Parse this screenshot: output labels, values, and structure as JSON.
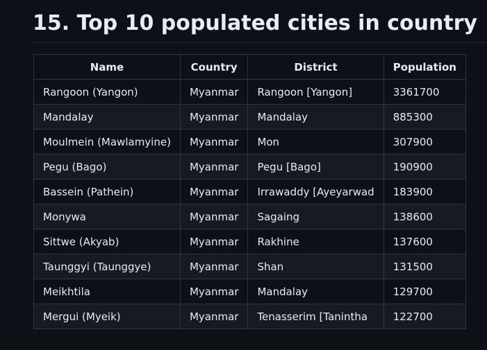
{
  "heading": "15. Top 10 populated cities in country",
  "table": {
    "columns": [
      "Name",
      "Country",
      "District",
      "Population"
    ],
    "rows": [
      {
        "name": "Rangoon (Yangon)",
        "country": "Myanmar",
        "district": "Rangoon [Yangon]",
        "population": "3361700"
      },
      {
        "name": "Mandalay",
        "country": "Myanmar",
        "district": "Mandalay",
        "population": "885300"
      },
      {
        "name": "Moulmein (Mawlamyine)",
        "country": "Myanmar",
        "district": "Mon",
        "population": "307900"
      },
      {
        "name": "Pegu (Bago)",
        "country": "Myanmar",
        "district": "Pegu [Bago]",
        "population": "190900"
      },
      {
        "name": "Bassein (Pathein)",
        "country": "Myanmar",
        "district": "Irrawaddy [Ayeyarwad",
        "population": "183900"
      },
      {
        "name": "Monywa",
        "country": "Myanmar",
        "district": "Sagaing",
        "population": "138600"
      },
      {
        "name": "Sittwe (Akyab)",
        "country": "Myanmar",
        "district": "Rakhine",
        "population": "137600"
      },
      {
        "name": "Taunggyi (Taunggye)",
        "country": "Myanmar",
        "district": "Shan",
        "population": "131500"
      },
      {
        "name": "Meikhtila",
        "country": "Myanmar",
        "district": "Mandalay",
        "population": "129700"
      },
      {
        "name": "Mergui (Myeik)",
        "country": "Myanmar",
        "district": "Tenasserim [Tanintha",
        "population": "122700"
      }
    ]
  },
  "colors": {
    "background": "#0d1117",
    "row_alt": "#161b22",
    "border": "#30363d",
    "text": "#e6edf3"
  }
}
